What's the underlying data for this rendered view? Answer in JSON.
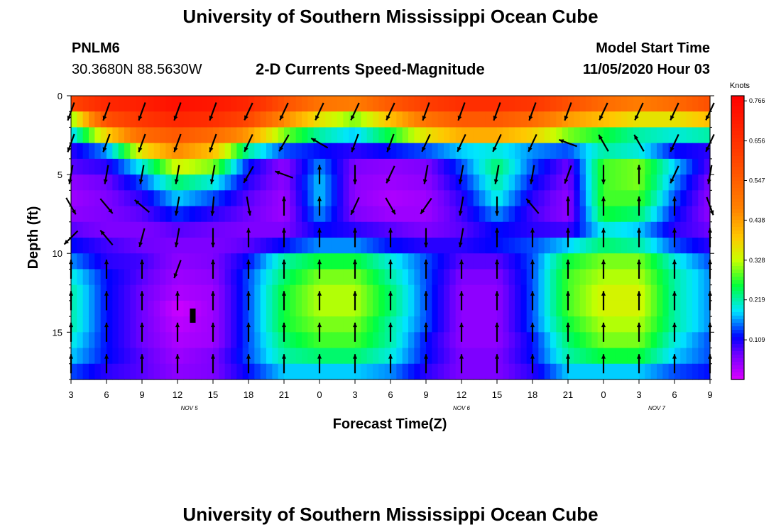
{
  "header": {
    "title_top": "University of Southern Mississippi Ocean Cube",
    "title_bottom": "University of Southern Mississippi Ocean Cube",
    "station_id": "PNLM6",
    "station_coords": "30.3680N 88.5630W",
    "subtitle": "2-D Currents Speed-Magnitude",
    "model_start_label": "Model Start Time",
    "model_start_value": "11/05/2020 Hour 03"
  },
  "chart_data": {
    "type": "heatmap",
    "title": "2-D Currents Speed-Magnitude",
    "xlabel": "Forecast Time(Z)",
    "ylabel": "Depth (ft)",
    "x_tick_labels": [
      "3",
      "6",
      "9",
      "12",
      "15",
      "18",
      "21",
      "0",
      "3",
      "6",
      "9",
      "12",
      "15",
      "18",
      "21",
      "0",
      "3",
      "6",
      "9"
    ],
    "x_forecast_hours": [
      0,
      3,
      6,
      9,
      12,
      15,
      18,
      21,
      24,
      27,
      30,
      33,
      36,
      39,
      42,
      45,
      48,
      51,
      54
    ],
    "date_labels": [
      {
        "text": "NOV 5",
        "forecast_hour": 10
      },
      {
        "text": "NOV 6",
        "forecast_hour": 33
      },
      {
        "text": "NOV 7",
        "forecast_hour": 49.5
      }
    ],
    "ylim": [
      18,
      0
    ],
    "y_ticks": [
      0,
      5,
      10,
      15
    ],
    "xlim": [
      0,
      54
    ],
    "colorbar": {
      "unit": "Knots",
      "ticks": [
        "0.766",
        "0.656",
        "0.547",
        "0.438",
        "0.328",
        "0.219",
        "0.109"
      ],
      "tick_values": [
        0.766,
        0.656,
        0.547,
        0.438,
        0.328,
        0.219,
        0.109
      ],
      "range": [
        0,
        0.78
      ]
    },
    "speed_grid": {
      "depths_ft": [
        0.5,
        1.5,
        2.5,
        3.5,
        4.5,
        5.5,
        6.5,
        7.5,
        8.5,
        9.5,
        10.5,
        11.5,
        12.5,
        13.5,
        14.5,
        15.5,
        16.5,
        17.5
      ],
      "hours": [
        0,
        3,
        6,
        9,
        12,
        15,
        18,
        21,
        24,
        27,
        30,
        33,
        36,
        39,
        42,
        45,
        48,
        51,
        54
      ],
      "values": [
        [
          0.6,
          0.68,
          0.7,
          0.74,
          0.72,
          0.68,
          0.58,
          0.5,
          0.48,
          0.56,
          0.62,
          0.66,
          0.66,
          0.64,
          0.58,
          0.52,
          0.48,
          0.52,
          0.58
        ],
        [
          0.3,
          0.58,
          0.64,
          0.68,
          0.66,
          0.6,
          0.46,
          0.36,
          0.3,
          0.4,
          0.5,
          0.56,
          0.56,
          0.52,
          0.44,
          0.4,
          0.36,
          0.36,
          0.4
        ],
        [
          0.18,
          0.38,
          0.52,
          0.56,
          0.52,
          0.44,
          0.3,
          0.22,
          0.18,
          0.26,
          0.36,
          0.42,
          0.42,
          0.38,
          0.3,
          0.26,
          0.22,
          0.2,
          0.22
        ],
        [
          0.1,
          0.16,
          0.36,
          0.46,
          0.4,
          0.22,
          0.14,
          0.12,
          0.1,
          0.12,
          0.14,
          0.18,
          0.2,
          0.16,
          0.14,
          0.22,
          0.2,
          0.12,
          0.1
        ],
        [
          0.08,
          0.1,
          0.2,
          0.34,
          0.3,
          0.12,
          0.05,
          0.16,
          0.06,
          0.05,
          0.06,
          0.14,
          0.24,
          0.14,
          0.07,
          0.28,
          0.3,
          0.18,
          0.08
        ],
        [
          0.05,
          0.07,
          0.14,
          0.24,
          0.2,
          0.1,
          0.05,
          0.18,
          0.05,
          0.04,
          0.05,
          0.12,
          0.22,
          0.12,
          0.06,
          0.28,
          0.3,
          0.16,
          0.06
        ],
        [
          0.04,
          0.06,
          0.1,
          0.18,
          0.14,
          0.08,
          0.04,
          0.18,
          0.05,
          0.03,
          0.04,
          0.1,
          0.2,
          0.1,
          0.05,
          0.28,
          0.28,
          0.14,
          0.05
        ],
        [
          0.05,
          0.06,
          0.08,
          0.13,
          0.1,
          0.07,
          0.04,
          0.16,
          0.06,
          0.04,
          0.04,
          0.09,
          0.16,
          0.09,
          0.05,
          0.26,
          0.24,
          0.12,
          0.05
        ],
        [
          0.08,
          0.06,
          0.06,
          0.08,
          0.07,
          0.06,
          0.06,
          0.12,
          0.1,
          0.08,
          0.06,
          0.08,
          0.12,
          0.1,
          0.09,
          0.2,
          0.18,
          0.1,
          0.07
        ],
        [
          0.12,
          0.09,
          0.07,
          0.06,
          0.06,
          0.08,
          0.12,
          0.16,
          0.16,
          0.12,
          0.1,
          0.1,
          0.12,
          0.14,
          0.18,
          0.24,
          0.22,
          0.14,
          0.1
        ],
        [
          0.16,
          0.1,
          0.09,
          0.05,
          0.06,
          0.12,
          0.22,
          0.26,
          0.26,
          0.2,
          0.14,
          0.08,
          0.08,
          0.14,
          0.26,
          0.3,
          0.3,
          0.2,
          0.14
        ],
        [
          0.2,
          0.12,
          0.08,
          0.04,
          0.05,
          0.14,
          0.24,
          0.3,
          0.3,
          0.22,
          0.14,
          0.06,
          0.06,
          0.14,
          0.28,
          0.32,
          0.32,
          0.22,
          0.16
        ],
        [
          0.22,
          0.12,
          0.07,
          0.03,
          0.04,
          0.14,
          0.26,
          0.32,
          0.32,
          0.24,
          0.14,
          0.05,
          0.05,
          0.14,
          0.28,
          0.34,
          0.34,
          0.22,
          0.16
        ],
        [
          0.22,
          0.12,
          0.07,
          0.01,
          0.04,
          0.14,
          0.26,
          0.32,
          0.32,
          0.24,
          0.14,
          0.05,
          0.05,
          0.14,
          0.28,
          0.34,
          0.34,
          0.22,
          0.16
        ],
        [
          0.22,
          0.12,
          0.07,
          0.02,
          0.04,
          0.14,
          0.26,
          0.3,
          0.3,
          0.22,
          0.14,
          0.05,
          0.05,
          0.14,
          0.26,
          0.32,
          0.32,
          0.22,
          0.16
        ],
        [
          0.2,
          0.12,
          0.07,
          0.03,
          0.04,
          0.14,
          0.24,
          0.28,
          0.28,
          0.22,
          0.12,
          0.05,
          0.05,
          0.12,
          0.24,
          0.3,
          0.3,
          0.2,
          0.14
        ],
        [
          0.18,
          0.12,
          0.08,
          0.04,
          0.06,
          0.14,
          0.22,
          0.24,
          0.24,
          0.2,
          0.12,
          0.06,
          0.06,
          0.12,
          0.22,
          0.26,
          0.26,
          0.18,
          0.14
        ],
        [
          0.14,
          0.1,
          0.08,
          0.05,
          0.06,
          0.12,
          0.18,
          0.18,
          0.18,
          0.16,
          0.1,
          0.06,
          0.06,
          0.1,
          0.18,
          0.18,
          0.18,
          0.14,
          0.12
        ]
      ]
    },
    "vector_depths_ft": [
      1,
      3,
      5,
      7,
      9,
      11,
      13,
      15,
      17
    ],
    "vector_directions_deg": [
      [
        200,
        200,
        200,
        200,
        200,
        205,
        205,
        205,
        205,
        205,
        200,
        200,
        200,
        200,
        200,
        205,
        205,
        205,
        205
      ],
      [
        200,
        200,
        200,
        200,
        200,
        205,
        210,
        300,
        200,
        200,
        205,
        205,
        205,
        205,
        290,
        330,
        330,
        205,
        205
      ],
      [
        190,
        190,
        190,
        190,
        190,
        210,
        290,
        0,
        180,
        205,
        190,
        190,
        190,
        190,
        200,
        180,
        0,
        205,
        190
      ],
      [
        150,
        140,
        310,
        190,
        185,
        170,
        0,
        0,
        205,
        150,
        215,
        190,
        180,
        320,
        0,
        0,
        0,
        0,
        160
      ],
      [
        225,
        320,
        195,
        190,
        180,
        0,
        0,
        0,
        0,
        0,
        180,
        190,
        0,
        0,
        0,
        0,
        0,
        0,
        0
      ],
      [
        0,
        0,
        0,
        200,
        0,
        0,
        0,
        0,
        0,
        0,
        0,
        0,
        0,
        0,
        0,
        0,
        0,
        0,
        0
      ],
      [
        0,
        0,
        0,
        0,
        0,
        0,
        0,
        0,
        0,
        0,
        0,
        0,
        0,
        0,
        0,
        0,
        0,
        0,
        0
      ],
      [
        0,
        0,
        0,
        0,
        0,
        0,
        0,
        0,
        0,
        0,
        0,
        0,
        0,
        0,
        0,
        0,
        0,
        0,
        0
      ],
      [
        0,
        0,
        0,
        0,
        0,
        0,
        0,
        0,
        0,
        0,
        0,
        0,
        0,
        0,
        0,
        0,
        0,
        0,
        0
      ]
    ]
  }
}
